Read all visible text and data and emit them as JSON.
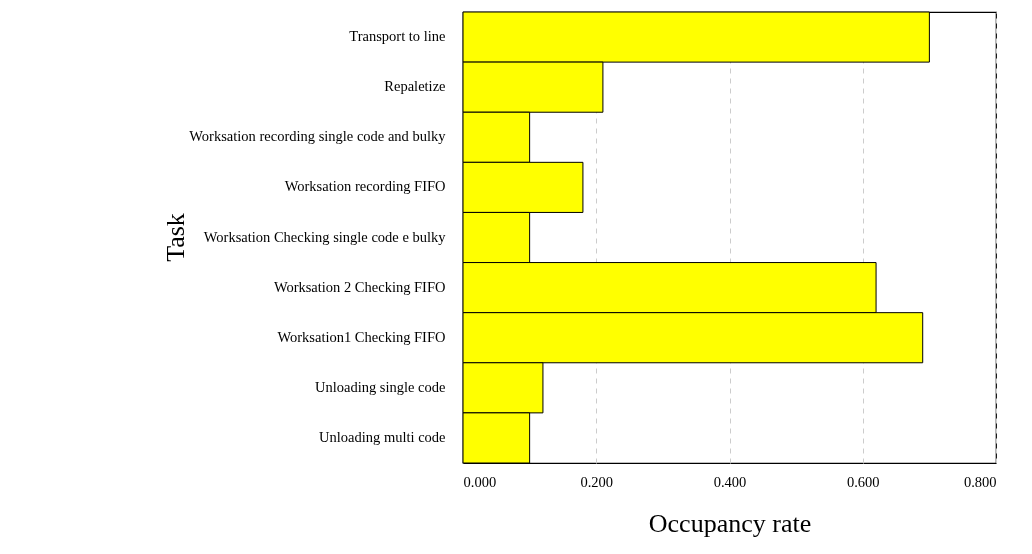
{
  "chart_data": {
    "type": "bar",
    "orientation": "horizontal",
    "xlabel": "Occupancy rate",
    "ylabel": "Task",
    "categories": [
      "Transport to line",
      "Repaletize",
      "Worksation recording single code and bulky",
      "Worksation recording FIFO",
      "Worksation Checking single code e bulky",
      "Worksation 2 Checking FIFO",
      "Worksation1 Checking FIFO",
      "Unloading single code",
      "Unloading multi code"
    ],
    "values": [
      0.7,
      0.21,
      0.1,
      0.18,
      0.1,
      0.62,
      0.69,
      0.12,
      0.1
    ],
    "color": "#ffff00",
    "xlim": [
      0,
      0.8
    ],
    "xticks": [
      {
        "value": 0,
        "label": "0.000"
      },
      {
        "value": 0.2,
        "label": "0.200"
      },
      {
        "value": 0.4,
        "label": "0.400"
      },
      {
        "value": 0.6,
        "label": "0.600"
      },
      {
        "value": 0.8,
        "label": "0.800"
      }
    ],
    "grid": "x"
  }
}
